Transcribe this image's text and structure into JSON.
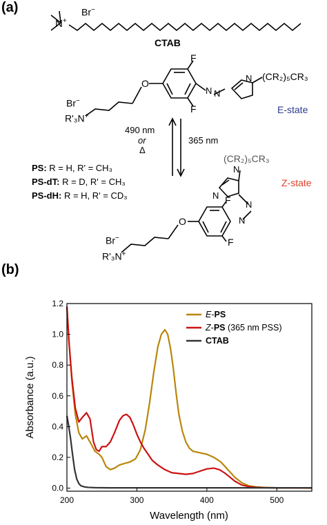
{
  "panel_a": {
    "label": "(a)",
    "ctab_label": "CTAB",
    "ammonium": "N",
    "ammonium_charge": "+",
    "bromide_top": "Br",
    "bromide_top_charge": "−",
    "e_state": {
      "O": "O",
      "F_top": "F",
      "F_bottom": "F",
      "N_ring": "N",
      "substituent": "(CR₂)₅CR₃",
      "Br": "Br",
      "Br_charge": "−",
      "R3N": "R'₃N",
      "R3N_charge": "+",
      "state_label": "E-state"
    },
    "arrows": {
      "back_top": "490 nm",
      "back_or": "or",
      "back_delta": "Δ",
      "forward": "365 nm"
    },
    "legend_ps": [
      {
        "name": "PS:",
        "def": "R = H, R' = CH₃"
      },
      {
        "name": "PS-dT:",
        "def": "R = D, R' = CH₃"
      },
      {
        "name": "PS-dH:",
        "def": "R = H, R' = CD₃"
      }
    ],
    "z_state": {
      "substituent": "(CR₂)₅CR₃",
      "N_ring": "N",
      "F_top": "F",
      "F_bottom": "F",
      "O": "O",
      "Br": "Br",
      "Br_charge": "−",
      "R3N": "R'₃N",
      "R3N_charge": "+",
      "state_label": "Z-state"
    }
  },
  "panel_b": {
    "label": "(b)"
  },
  "colors": {
    "e_ps": "#b8860b",
    "z_ps": "#cc1111",
    "ctab": "#333333",
    "e_state_text": "#2b3a8c",
    "z_state_text": "#e0402a"
  },
  "chart_data": {
    "type": "line",
    "xlabel": "Wavelength (nm)",
    "ylabel": "Absorbance (a.u.)",
    "xlim": [
      200,
      550
    ],
    "ylim": [
      -0.02,
      1.2
    ],
    "xticks": [
      200,
      300,
      400,
      500
    ],
    "yticks": [
      0.0,
      0.2,
      0.4,
      0.6,
      0.8,
      1.0,
      1.2
    ],
    "ytick_labels": [
      "0.0",
      "0.2",
      "0.4",
      "0.6",
      "0.8",
      "1.0",
      "1.2"
    ],
    "legend_placement": "top-right",
    "series": [
      {
        "name": "E-PS",
        "legend_prefix": "E",
        "legend_bold": "PS",
        "legend_suffix": "",
        "x": [
          200,
          203,
          207,
          212,
          217,
          222,
          228,
          233,
          240,
          246,
          250,
          256,
          262,
          268,
          275,
          282,
          290,
          298,
          305,
          312,
          318,
          324,
          330,
          335,
          340,
          344,
          348,
          352,
          356,
          360,
          365,
          370,
          375,
          380,
          390,
          400,
          410,
          420,
          430,
          440,
          450,
          460,
          470,
          480,
          490,
          500,
          520,
          550
        ],
        "y": [
          1.18,
          0.95,
          0.7,
          0.48,
          0.36,
          0.32,
          0.34,
          0.3,
          0.24,
          0.22,
          0.2,
          0.14,
          0.12,
          0.13,
          0.15,
          0.16,
          0.17,
          0.19,
          0.25,
          0.38,
          0.55,
          0.75,
          0.92,
          1.0,
          1.03,
          1.0,
          0.91,
          0.78,
          0.62,
          0.48,
          0.37,
          0.3,
          0.26,
          0.24,
          0.23,
          0.22,
          0.2,
          0.17,
          0.12,
          0.07,
          0.035,
          0.015,
          0.008,
          0.005,
          0.003,
          0.002,
          0.001,
          0.0
        ]
      },
      {
        "name": "Z-PS (365 nm PSS)",
        "legend_prefix": "Z",
        "legend_bold": "PS",
        "legend_suffix": " (365 nm PSS)",
        "x": [
          200,
          203,
          207,
          212,
          217,
          222,
          228,
          233,
          238,
          242,
          246,
          250,
          256,
          262,
          268,
          275,
          280,
          285,
          290,
          295,
          300,
          305,
          310,
          316,
          322,
          330,
          340,
          350,
          360,
          370,
          380,
          390,
          400,
          410,
          418,
          425,
          432,
          440,
          450,
          460,
          470,
          480,
          500,
          550
        ],
        "y": [
          1.18,
          0.95,
          0.72,
          0.52,
          0.43,
          0.46,
          0.49,
          0.45,
          0.3,
          0.25,
          0.24,
          0.27,
          0.27,
          0.3,
          0.36,
          0.44,
          0.47,
          0.48,
          0.46,
          0.41,
          0.35,
          0.3,
          0.26,
          0.22,
          0.18,
          0.15,
          0.12,
          0.1,
          0.095,
          0.09,
          0.095,
          0.11,
          0.125,
          0.13,
          0.12,
          0.1,
          0.075,
          0.045,
          0.02,
          0.01,
          0.005,
          0.003,
          0.002,
          0.001
        ]
      },
      {
        "name": "CTAB",
        "legend_prefix": "",
        "legend_bold": "CTAB",
        "legend_suffix": "",
        "x": [
          200,
          202,
          205,
          208,
          211,
          214,
          217,
          220,
          225,
          230,
          240,
          260,
          300,
          400,
          550
        ],
        "y": [
          0.47,
          0.42,
          0.33,
          0.22,
          0.12,
          0.06,
          0.03,
          0.015,
          0.008,
          0.005,
          0.003,
          0.002,
          0.002,
          0.002,
          0.002
        ]
      }
    ]
  }
}
